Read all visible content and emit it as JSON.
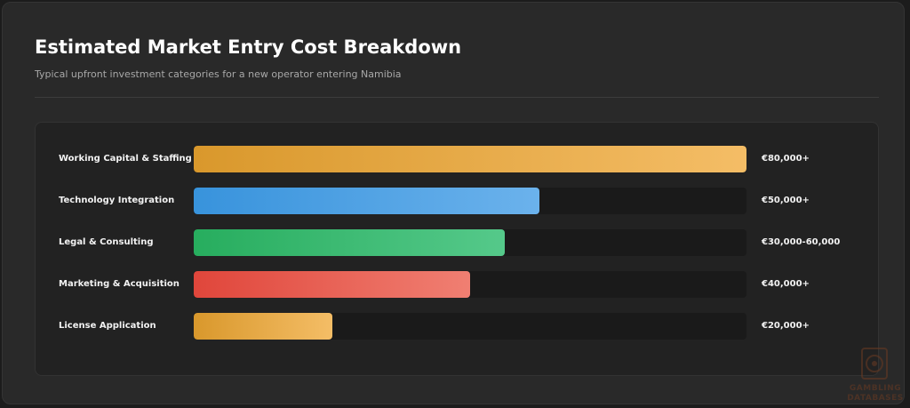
{
  "header": {
    "title": "Estimated Market Entry Cost Breakdown",
    "subtitle": "Typical upfront investment categories for a new operator entering Namibia"
  },
  "chart_data": {
    "type": "bar",
    "orientation": "horizontal",
    "title": "",
    "xlabel": "",
    "ylabel": "",
    "xlim": [
      0,
      80000
    ],
    "grid": false,
    "legend": "none",
    "categories": [
      "Working Capital & Staffing",
      "Technology Integration",
      "Legal & Consulting",
      "Marketing & Acquisition",
      "License Application"
    ],
    "values": [
      80000,
      50000,
      45000,
      40000,
      20000
    ],
    "value_labels": [
      "€80,000+",
      "€50,000+",
      "€30,000-60,000",
      "€40,000+",
      "€20,000+"
    ],
    "colors": [
      [
        "#d9982c",
        "#f4bd66"
      ],
      [
        "#3893dc",
        "#6bb2ec"
      ],
      [
        "#27ad5e",
        "#55c98a"
      ],
      [
        "#e0463b",
        "#f07f72"
      ],
      [
        "#d9982c",
        "#f4bd66"
      ]
    ]
  },
  "watermark": {
    "line1": "GAMBLING",
    "line2": "DATABASES"
  }
}
